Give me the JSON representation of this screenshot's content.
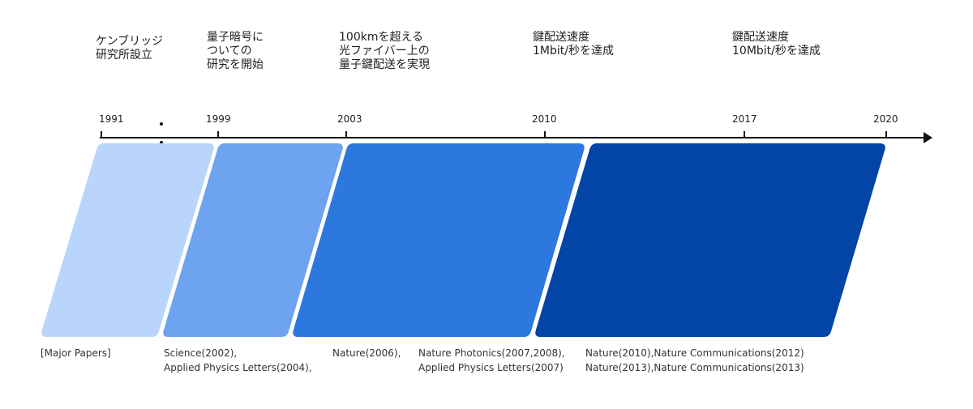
{
  "milestones": [
    {
      "lines": [
        "ケンブリッジ",
        "研究所設立"
      ]
    },
    {
      "lines": [
        "量子暗号に",
        "ついての",
        "研究を開始"
      ]
    },
    {
      "lines": [
        "100kmを超える",
        "光ファイバー上の",
        "量子鍵配送を実現"
      ]
    },
    {
      "lines": [
        "鍵配送速度",
        "1Mbit/秒を達成"
      ]
    },
    {
      "lines": [
        "鍵配送速度",
        "10Mbit/秒を達成"
      ]
    }
  ],
  "years": [
    "1991",
    "1999",
    "2003",
    "2010",
    "2017",
    "2020"
  ],
  "papers_label": "[Major Papers]",
  "papers": [
    {
      "lines": [
        "Science(2002),",
        "Applied Physics Letters(2004),"
      ]
    },
    {
      "lines": [
        "Nature(2006),"
      ]
    },
    {
      "lines": [
        "Nature Photonics(2007,2008),",
        "Applied Physics Letters(2007)"
      ]
    },
    {
      "lines": [
        "Nature(2010),Nature Communications(2012)",
        "Nature(2013),Nature Communications(2013)"
      ]
    }
  ],
  "colors": {
    "phase1": "#b9d5fc",
    "phase2": "#6da3ef",
    "phase3": "#2d78de",
    "phase4": "#0245a7",
    "axis": "#111111"
  }
}
